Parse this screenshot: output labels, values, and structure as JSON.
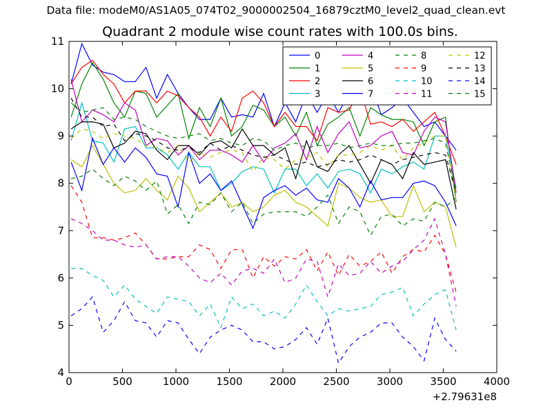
{
  "figure": {
    "suptitle": "Data file: modeM0/AS1A05_074T02_9000002504_16879cztM0_level2_quad_clean.evt",
    "title": "Quadrant 2 module wise count rates with 100.0s bins."
  },
  "chart_data": {
    "type": "line",
    "title": "Quadrant 2 module wise count rates with 100.0s bins.",
    "xlabel": "",
    "ylabel": "",
    "x_offset_label": "+2.79631e8",
    "xlim": [
      0,
      4000
    ],
    "ylim": [
      4,
      11
    ],
    "xticks": [
      0,
      500,
      1000,
      1500,
      2000,
      2500,
      3000,
      3500,
      4000
    ],
    "yticks": [
      4,
      5,
      6,
      7,
      8,
      9,
      10,
      11
    ],
    "grid": false,
    "legend": {
      "placement": "top-right",
      "columns": 4
    },
    "x": [
      20,
      120,
      220,
      320,
      420,
      520,
      620,
      720,
      820,
      920,
      1020,
      1120,
      1220,
      1320,
      1420,
      1520,
      1620,
      1720,
      1820,
      1920,
      2020,
      2120,
      2220,
      2320,
      2420,
      2520,
      2620,
      2720,
      2820,
      2920,
      3020,
      3120,
      3220,
      3320,
      3420,
      3520,
      3620
    ],
    "series": [
      {
        "name": "0",
        "color": "#0000ff",
        "dash": "solid",
        "values": [
          10.1,
          10.95,
          10.5,
          10.35,
          10.3,
          10.15,
          10.15,
          10.45,
          9.8,
          10.3,
          9.9,
          9.6,
          9.35,
          9.35,
          9.8,
          9.4,
          9.45,
          9.4,
          9.9,
          9.2,
          9.7,
          9.3,
          9.9,
          9.5,
          9.9,
          9.5,
          9.9,
          9.85,
          10.1,
          9.45,
          9.6,
          9.8,
          9.5,
          9.2,
          9.3,
          9.0,
          8.7
        ]
      },
      {
        "name": "1",
        "color": "#008000",
        "dash": "solid",
        "values": [
          9.4,
          10.1,
          10.55,
          10.2,
          9.7,
          9.4,
          9.95,
          9.9,
          9.4,
          9.65,
          9.9,
          8.95,
          9.6,
          9.2,
          9.8,
          9.0,
          9.2,
          9.65,
          9.55,
          9.2,
          9.4,
          9.0,
          9.5,
          8.8,
          9.25,
          9.4,
          9.6,
          9.0,
          9.6,
          9.45,
          9.35,
          9.35,
          9.3,
          8.8,
          9.3,
          9.4,
          7.6
        ]
      },
      {
        "name": "2",
        "color": "#ff0000",
        "dash": "solid",
        "values": [
          10.1,
          10.45,
          10.6,
          10.3,
          10.1,
          9.7,
          9.95,
          9.95,
          9.7,
          9.95,
          9.85,
          9.6,
          9.4,
          9.0,
          9.4,
          9.1,
          9.8,
          9.95,
          9.7,
          9.2,
          9.5,
          9.2,
          9.2,
          8.9,
          9.6,
          9.5,
          9.55,
          10.0,
          9.25,
          9.3,
          9.2,
          9.35,
          9.1,
          9.3,
          9.5,
          9.0,
          8.4
        ]
      },
      {
        "name": "3",
        "color": "#00bfbf",
        "dash": "solid",
        "values": [
          8.9,
          9.7,
          8.9,
          8.85,
          8.45,
          9.15,
          9.2,
          8.75,
          8.75,
          8.6,
          8.3,
          8.65,
          8.35,
          8.35,
          7.85,
          8.0,
          8.25,
          8.35,
          8.3,
          7.8,
          8.3,
          8.3,
          7.95,
          8.2,
          7.9,
          8.25,
          8.3,
          8.2,
          7.8,
          8.3,
          8.2,
          8.35,
          8.45,
          8.3,
          9.0,
          9.0,
          7.9
        ]
      },
      {
        "name": "4",
        "color": "#bf00bf",
        "dash": "solid",
        "values": [
          10.2,
          9.3,
          9.55,
          9.45,
          9.3,
          9.7,
          9.55,
          8.8,
          8.95,
          8.9,
          8.6,
          8.8,
          8.5,
          8.7,
          8.7,
          8.6,
          8.45,
          8.8,
          8.45,
          8.75,
          8.85,
          9.05,
          8.5,
          9.2,
          8.65,
          9.05,
          9.3,
          8.75,
          8.8,
          9.0,
          9.1,
          8.65,
          8.6,
          9.1,
          9.4,
          9.3,
          7.8
        ]
      },
      {
        "name": "5",
        "color": "#bfbf00",
        "dash": "solid",
        "values": [
          8.5,
          8.35,
          8.8,
          8.4,
          8.0,
          7.8,
          7.85,
          8.1,
          7.85,
          7.65,
          8.15,
          7.9,
          7.4,
          7.6,
          7.8,
          7.5,
          7.6,
          7.4,
          7.5,
          7.75,
          7.85,
          7.6,
          7.5,
          7.3,
          7.1,
          8.0,
          7.9,
          7.7,
          7.6,
          7.65,
          7.3,
          7.3,
          7.95,
          7.4,
          7.6,
          7.5,
          6.65
        ]
      },
      {
        "name": "6",
        "color": "#000000",
        "dash": "solid",
        "values": [
          9.15,
          9.3,
          9.3,
          9.25,
          8.75,
          8.85,
          9.1,
          9.05,
          8.7,
          8.5,
          8.8,
          8.8,
          8.6,
          8.85,
          8.9,
          8.75,
          9.15,
          8.8,
          8.8,
          8.6,
          8.75,
          8.1,
          8.9,
          8.35,
          8.25,
          8.6,
          8.8,
          8.4,
          8.0,
          8.5,
          8.4,
          8.1,
          8.65,
          8.4,
          8.45,
          8.5,
          7.45
        ]
      },
      {
        "name": "7",
        "color": "#0000ff",
        "dash": "solid",
        "values": [
          8.45,
          7.85,
          8.95,
          8.4,
          8.75,
          8.45,
          8.75,
          8.55,
          8.2,
          8.15,
          7.5,
          8.65,
          8.0,
          8.2,
          7.85,
          8.05,
          7.55,
          7.05,
          7.7,
          7.85,
          7.95,
          7.75,
          7.9,
          7.65,
          7.6,
          8.1,
          7.9,
          7.5,
          8.05,
          7.65,
          7.7,
          7.7,
          8.0,
          8.05,
          7.95,
          7.6,
          7.1
        ]
      },
      {
        "name": "8",
        "color": "#008000",
        "dash": "dash",
        "values": [
          8.1,
          8.15,
          8.3,
          8.1,
          7.95,
          8.15,
          8.05,
          7.85,
          8.05,
          7.35,
          7.55,
          7.15,
          7.6,
          7.55,
          7.8,
          7.4,
          7.6,
          7.15,
          7.35,
          7.4,
          7.4,
          7.4,
          7.3,
          7.5,
          7.75,
          7.15,
          7.5,
          7.4,
          6.9,
          7.3,
          7.35,
          7.1,
          7.25,
          7.2,
          7.6,
          7.5,
          7.7
        ]
      },
      {
        "name": "9",
        "color": "#ff0000",
        "dash": "dash",
        "values": [
          7.95,
          7.6,
          6.85,
          6.85,
          6.8,
          6.85,
          6.95,
          6.7,
          6.4,
          6.4,
          6.45,
          6.45,
          6.7,
          6.6,
          6.2,
          6.6,
          6.6,
          6.0,
          6.45,
          6.25,
          6.45,
          6.4,
          6.6,
          6.15,
          6.55,
          6.05,
          6.5,
          6.25,
          6.35,
          6.55,
          6.1,
          6.45,
          6.6,
          6.55,
          6.9,
          6.5,
          5.7
        ]
      },
      {
        "name": "10",
        "color": "#00bfbf",
        "dash": "dash",
        "values": [
          6.2,
          6.2,
          6.05,
          5.95,
          5.6,
          5.85,
          5.55,
          5.4,
          5.25,
          5.6,
          5.55,
          5.5,
          5.2,
          5.45,
          4.95,
          5.6,
          5.35,
          5.45,
          5.2,
          5.3,
          5.15,
          5.45,
          5.85,
          5.5,
          5.2,
          5.35,
          5.3,
          5.35,
          5.4,
          5.65,
          5.7,
          5.8,
          5.2,
          5.45,
          5.65,
          5.75,
          4.9
        ]
      },
      {
        "name": "11",
        "color": "#bf00bf",
        "dash": "dash",
        "values": [
          7.25,
          7.15,
          7.0,
          6.8,
          6.8,
          6.7,
          6.65,
          6.7,
          6.4,
          6.45,
          6.45,
          6.25,
          6.0,
          5.9,
          6.1,
          5.85,
          6.15,
          6.2,
          6.1,
          6.4,
          5.9,
          6.0,
          6.4,
          6.35,
          5.6,
          6.3,
          6.05,
          6.1,
          6.35,
          6.1,
          6.25,
          6.35,
          6.6,
          6.8,
          7.25,
          6.5,
          5.4
        ]
      },
      {
        "name": "12",
        "color": "#bfbf00",
        "dash": "dash",
        "values": [
          8.95,
          9.15,
          9.1,
          8.95,
          9.05,
          9.0,
          8.95,
          8.8,
          8.75,
          8.65,
          8.8,
          8.45,
          8.65,
          8.55,
          8.65,
          8.7,
          8.65,
          8.25,
          8.55,
          8.5,
          8.3,
          8.5,
          8.55,
          8.65,
          8.35,
          8.6,
          8.6,
          8.65,
          8.8,
          8.7,
          8.8,
          8.5,
          8.75,
          8.85,
          9.0,
          9.0,
          7.6
        ]
      },
      {
        "name": "13",
        "color": "#000000",
        "dash": "dash",
        "values": [
          9.8,
          9.4,
          9.4,
          9.2,
          9.25,
          8.9,
          9.05,
          9.0,
          8.9,
          8.75,
          8.7,
          8.75,
          8.65,
          8.85,
          8.7,
          8.8,
          8.7,
          8.6,
          8.55,
          8.6,
          8.5,
          8.4,
          8.45,
          8.35,
          8.4,
          8.5,
          8.45,
          8.5,
          8.6,
          8.5,
          8.4,
          8.5,
          8.55,
          8.6,
          8.65,
          8.6,
          7.8
        ]
      },
      {
        "name": "14",
        "color": "#0000ff",
        "dash": "dash",
        "values": [
          5.2,
          5.35,
          5.6,
          4.85,
          5.1,
          5.5,
          5.1,
          5.05,
          4.75,
          5.1,
          5.05,
          4.7,
          4.4,
          4.75,
          4.9,
          5.0,
          4.9,
          4.65,
          4.65,
          4.5,
          4.55,
          4.7,
          4.95,
          4.6,
          5.15,
          4.2,
          4.55,
          4.75,
          4.85,
          5.05,
          5.05,
          4.75,
          4.55,
          4.25,
          5.15,
          4.7,
          4.45
        ]
      },
      {
        "name": "15",
        "color": "#008000",
        "dash": "dash",
        "values": [
          9.7,
          9.5,
          9.55,
          9.6,
          9.35,
          9.4,
          9.35,
          9.2,
          9.1,
          9.0,
          8.95,
          9.0,
          9.05,
          8.9,
          8.95,
          8.85,
          8.8,
          8.95,
          8.9,
          8.7,
          8.8,
          8.85,
          8.75,
          8.8,
          8.8,
          8.85,
          8.75,
          8.8,
          8.85,
          8.8,
          8.8,
          8.85,
          8.85,
          8.9,
          8.95,
          8.85,
          7.8
        ]
      }
    ]
  }
}
